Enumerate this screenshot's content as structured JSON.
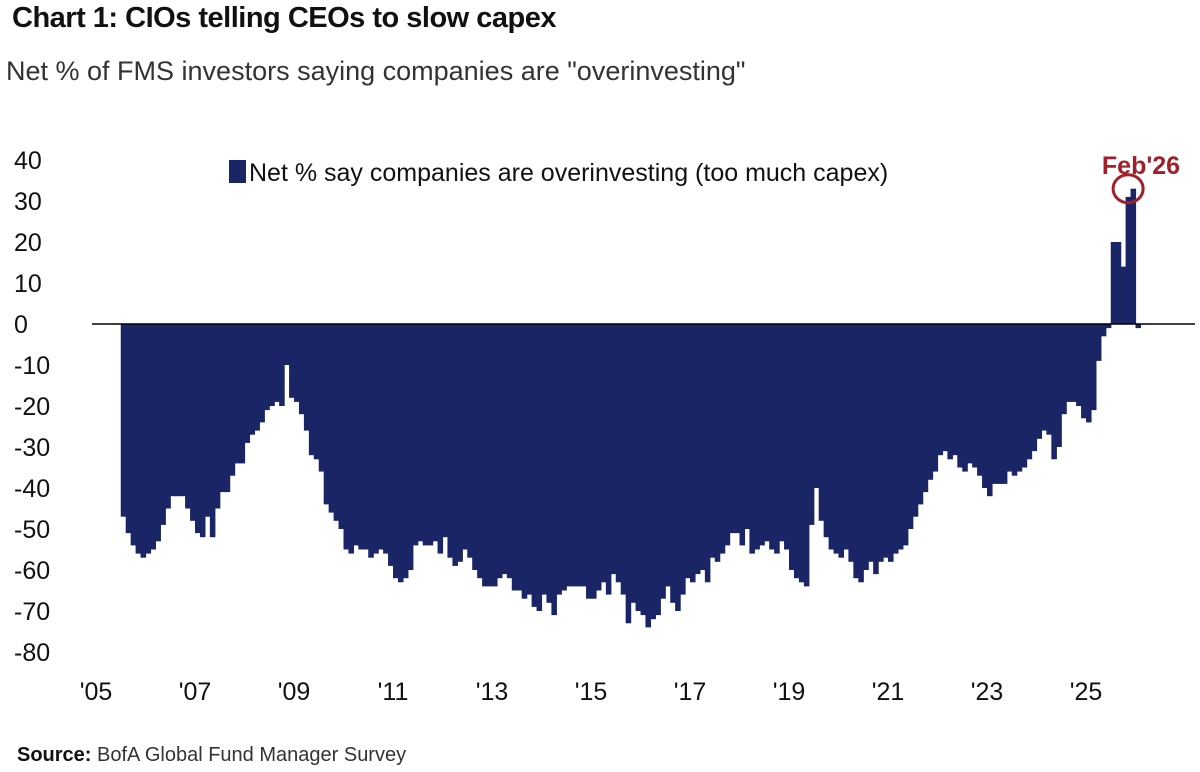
{
  "title": "Chart 1: CIOs telling CEOs to slow capex",
  "subtitle": "Net % of FMS investors saying companies are \"overinvesting\"",
  "source_label": "Source:",
  "source_text": "BofA Global Fund Manager Survey",
  "annotation": "Feb'26",
  "colors": {
    "bar": "#1a2566",
    "annotation": "#a0202c",
    "axis": "#000000"
  },
  "chart_data": {
    "type": "bar",
    "title": "Chart 1: CIOs telling CEOs to slow capex",
    "subtitle": "Net % of FMS investors saying companies are \"overinvesting\"",
    "xlabel": "",
    "ylabel": "",
    "ylim": [
      -80,
      40
    ],
    "yticks": [
      "40",
      "30",
      "20",
      "10",
      "0",
      "-10",
      "-20",
      "-30",
      "-40",
      "-50",
      "-60",
      "-70",
      "-80"
    ],
    "xticks": [
      {
        "label": "'05",
        "x": 2005
      },
      {
        "label": "'07",
        "x": 2007
      },
      {
        "label": "'09",
        "x": 2009
      },
      {
        "label": "'11",
        "x": 2011
      },
      {
        "label": "'13",
        "x": 2013
      },
      {
        "label": "'15",
        "x": 2015
      },
      {
        "label": "'17",
        "x": 2017
      },
      {
        "label": "'19",
        "x": 2019
      },
      {
        "label": "'21",
        "x": 2021
      },
      {
        "label": "'23",
        "x": 2023
      },
      {
        "label": "'25",
        "x": 2025
      }
    ],
    "legend": "top-center",
    "grid": false,
    "series": [
      {
        "name": "Net % say companies are overinvesting (too much capex)",
        "x_start": 2005.5,
        "x_end": 2026.1,
        "values": [
          -47,
          -51,
          -54,
          -56,
          -57,
          -56,
          -55,
          -53,
          -49,
          -45,
          -42,
          -42,
          -42,
          -45,
          -48,
          -51,
          -52,
          -47,
          -52,
          -45,
          -41,
          -41,
          -37,
          -34,
          -34,
          -29,
          -27,
          -26,
          -24,
          -21,
          -20,
          -19,
          -20,
          -10,
          -18,
          -19,
          -22,
          -26,
          -32,
          -33,
          -36,
          -44,
          -46,
          -48,
          -50,
          -55,
          -56,
          -54,
          -55,
          -55,
          -57,
          -56,
          -55,
          -56,
          -59,
          -62,
          -63,
          -62,
          -60,
          -54,
          -53,
          -54,
          -54,
          -53,
          -56,
          -52,
          -57,
          -59,
          -58,
          -55,
          -57,
          -60,
          -62,
          -64,
          -64,
          -64,
          -62,
          -61,
          -62,
          -65,
          -65,
          -67,
          -66,
          -69,
          -70,
          -66,
          -68,
          -71,
          -66,
          -65,
          -64,
          -64,
          -64,
          -64,
          -67,
          -67,
          -65,
          -63,
          -66,
          -61,
          -63,
          -66,
          -73,
          -68,
          -70,
          -71,
          -74,
          -72,
          -71,
          -67,
          -64,
          -68,
          -70,
          -66,
          -62,
          -63,
          -61,
          -60,
          -63,
          -57,
          -58,
          -56,
          -54,
          -51,
          -51,
          -54,
          -50,
          -56,
          -55,
          -54,
          -53,
          -55,
          -56,
          -53,
          -55,
          -60,
          -62,
          -63,
          -64,
          -49,
          -40,
          -48,
          -52,
          -55,
          -56,
          -57,
          -55,
          -58,
          -62,
          -63,
          -60,
          -58,
          -61,
          -58,
          -57,
          -58,
          -56,
          -55,
          -54,
          -50,
          -47,
          -44,
          -41,
          -38,
          -36,
          -32,
          -31,
          -33,
          -32,
          -35,
          -36,
          -34,
          -35,
          -37,
          -40,
          -42,
          -39,
          -39,
          -39,
          -36,
          -37,
          -36,
          -35,
          -33,
          -31,
          -28,
          -26,
          -27,
          -33,
          -30,
          -22,
          -19,
          -19,
          -20,
          -23,
          -24,
          -21,
          -9,
          -3,
          -1,
          20,
          20,
          14,
          31,
          33,
          -1
        ]
      }
    ],
    "annotations": [
      {
        "text": "Feb'26",
        "x": 2026.1,
        "y": 33
      }
    ]
  }
}
